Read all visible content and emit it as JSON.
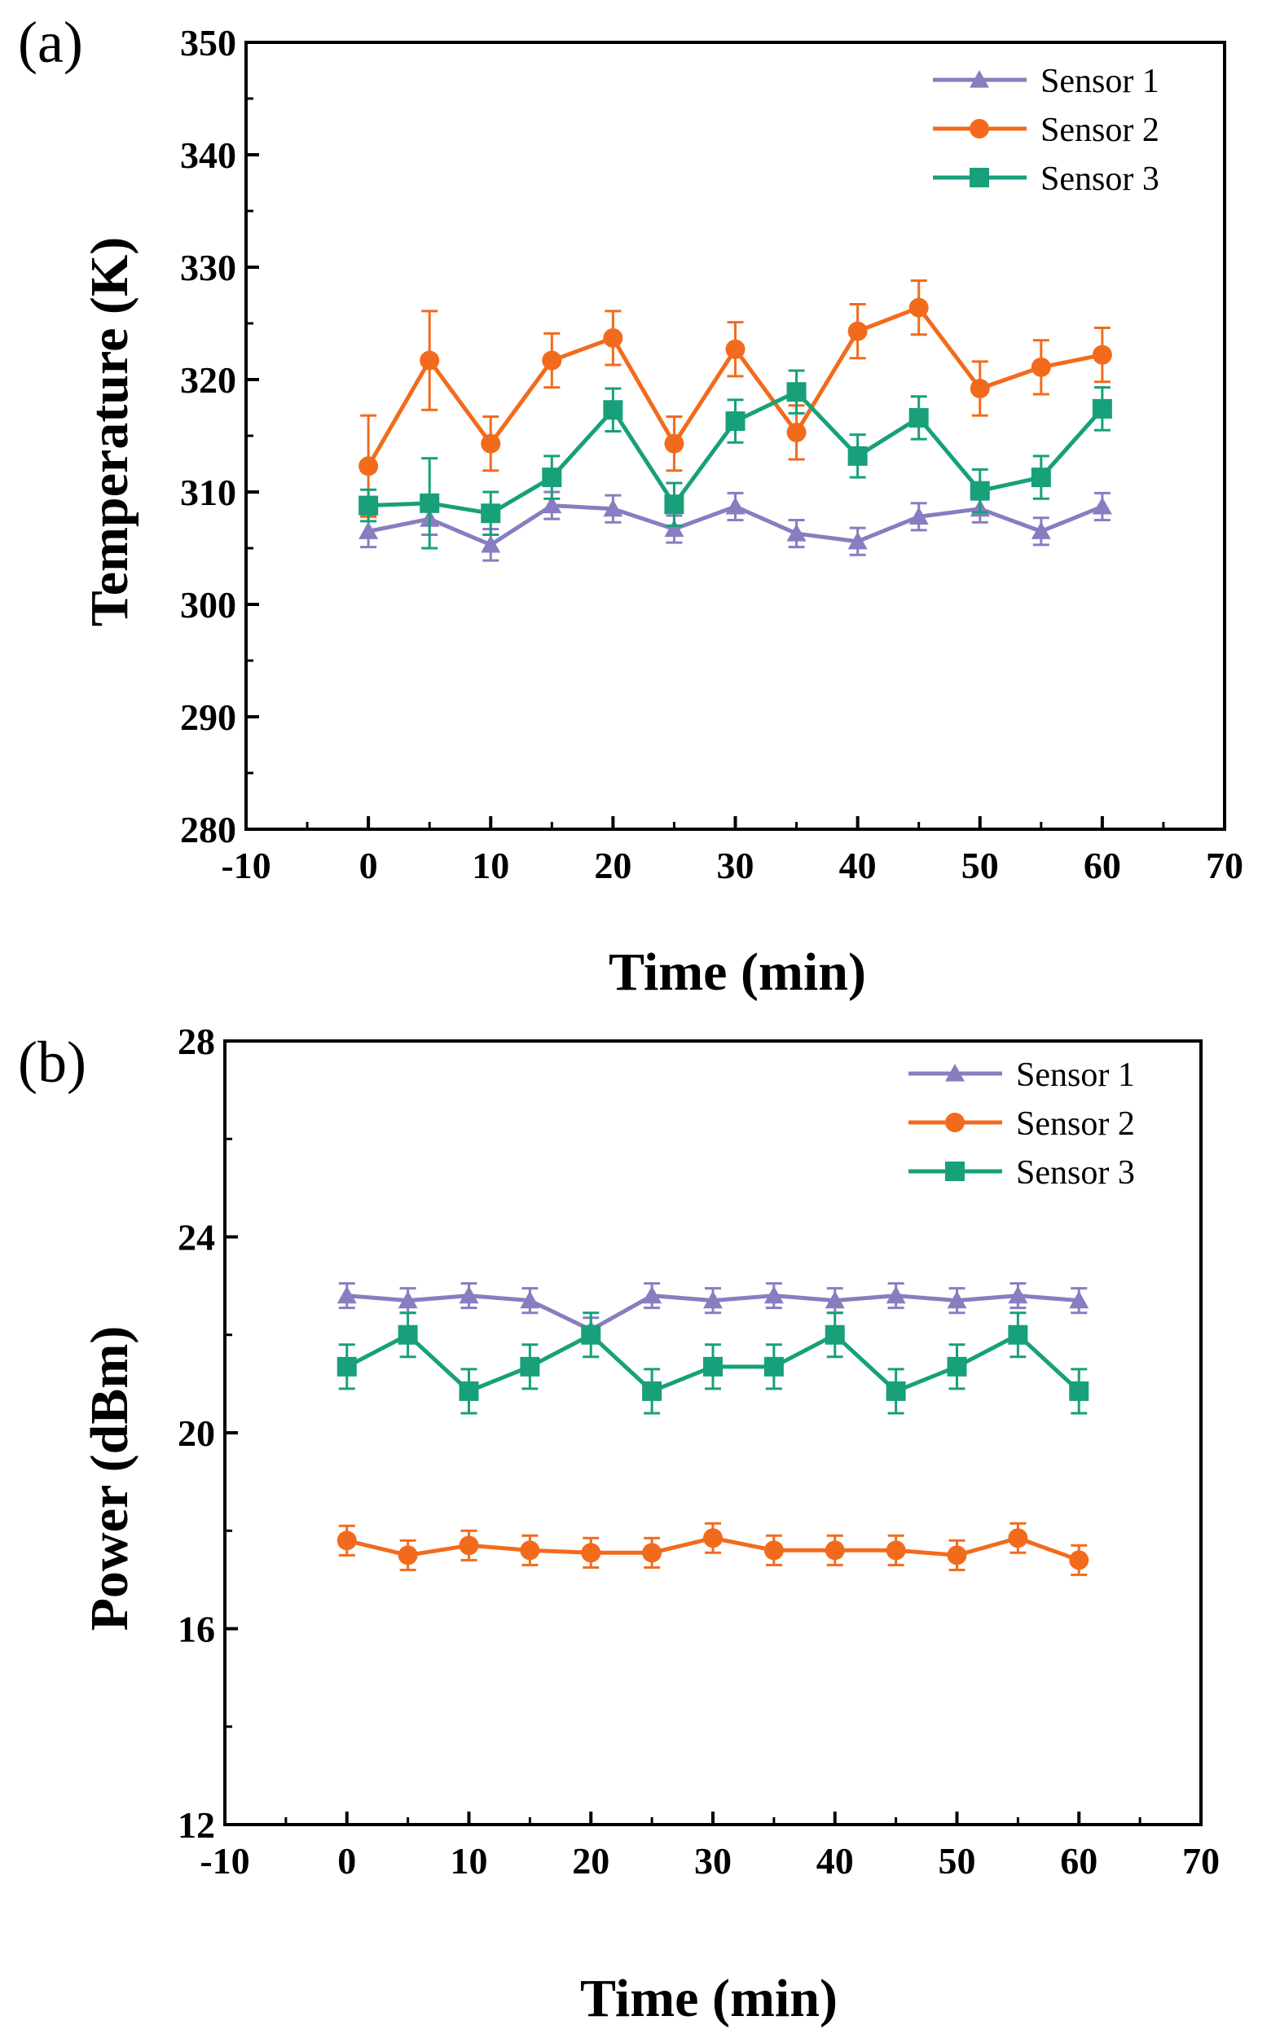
{
  "colors": {
    "sensor1": "#8A7CC0",
    "sensor2": "#F26B1D",
    "sensor3": "#17A07A",
    "axis": "#000000"
  },
  "chart_data": [
    {
      "type": "line",
      "panel_label": "(a)",
      "xlabel": "Time (min)",
      "ylabel": "Temperature (K)",
      "xlim": [
        -10,
        70
      ],
      "ylim": [
        280,
        350
      ],
      "xticks": [
        -10,
        0,
        10,
        20,
        30,
        40,
        50,
        60,
        70
      ],
      "yticks": [
        280,
        290,
        300,
        310,
        320,
        330,
        340,
        350
      ],
      "legend_position": "top-right",
      "x": [
        0,
        5,
        10,
        15,
        20,
        25,
        30,
        35,
        40,
        45,
        50,
        55,
        60
      ],
      "series": [
        {
          "name": "Sensor 1",
          "marker": "triangle",
          "color": "#8A7CC0",
          "values": [
            306.5,
            307.6,
            305.3,
            308.8,
            308.5,
            306.7,
            308.7,
            306.3,
            305.6,
            307.8,
            308.5,
            306.5,
            308.7
          ],
          "errors": [
            1.4,
            1.4,
            1.4,
            1.2,
            1.2,
            1.2,
            1.2,
            1.2,
            1.2,
            1.2,
            1.2,
            1.2,
            1.2
          ]
        },
        {
          "name": "Sensor 2",
          "marker": "circle",
          "color": "#F26B1D",
          "values": [
            312.3,
            321.7,
            314.3,
            321.7,
            323.7,
            314.3,
            322.7,
            315.3,
            324.3,
            326.4,
            319.2,
            321.1,
            322.2
          ],
          "errors": [
            4.5,
            4.4,
            2.4,
            2.4,
            2.4,
            2.4,
            2.4,
            2.4,
            2.4,
            2.4,
            2.4,
            2.4,
            2.4
          ]
        },
        {
          "name": "Sensor 3",
          "marker": "square",
          "color": "#17A07A",
          "values": [
            308.8,
            309.0,
            308.1,
            311.3,
            317.3,
            308.9,
            316.3,
            318.9,
            313.2,
            316.6,
            310.1,
            311.3,
            317.4
          ],
          "errors": [
            1.4,
            4.0,
            1.9,
            1.9,
            1.9,
            1.9,
            1.9,
            1.9,
            1.9,
            1.9,
            1.9,
            1.9,
            1.9
          ]
        }
      ]
    },
    {
      "type": "line",
      "panel_label": "(b)",
      "xlabel": "Time (min)",
      "ylabel": "Power (dBm)",
      "xlim": [
        -10,
        70
      ],
      "ylim": [
        12,
        28
      ],
      "xticks": [
        -10,
        0,
        10,
        20,
        30,
        40,
        50,
        60,
        70
      ],
      "yticks": [
        12,
        16,
        20,
        24,
        28
      ],
      "legend_position": "top-right",
      "x": [
        0,
        5,
        10,
        15,
        20,
        25,
        30,
        35,
        40,
        45,
        50,
        55,
        60
      ],
      "series": [
        {
          "name": "Sensor 1",
          "marker": "triangle",
          "color": "#8A7CC0",
          "values": [
            22.8,
            22.7,
            22.8,
            22.7,
            22.1,
            22.8,
            22.7,
            22.8,
            22.7,
            22.8,
            22.7,
            22.8,
            22.7
          ],
          "errors": [
            0.25,
            0.25,
            0.25,
            0.25,
            0.25,
            0.25,
            0.25,
            0.25,
            0.25,
            0.25,
            0.25,
            0.25,
            0.25
          ]
        },
        {
          "name": "Sensor 2",
          "marker": "circle",
          "color": "#F26B1D",
          "values": [
            17.8,
            17.5,
            17.7,
            17.6,
            17.55,
            17.55,
            17.85,
            17.6,
            17.6,
            17.6,
            17.5,
            17.85,
            17.4
          ],
          "errors": [
            0.3,
            0.3,
            0.3,
            0.3,
            0.3,
            0.3,
            0.3,
            0.3,
            0.3,
            0.3,
            0.3,
            0.3,
            0.3
          ]
        },
        {
          "name": "Sensor 3",
          "marker": "square",
          "color": "#17A07A",
          "values": [
            21.35,
            22.0,
            20.85,
            21.35,
            22.0,
            20.85,
            21.35,
            21.35,
            22.0,
            20.85,
            21.35,
            22.0,
            20.85
          ],
          "errors": [
            0.45,
            0.45,
            0.45,
            0.45,
            0.45,
            0.45,
            0.45,
            0.45,
            0.45,
            0.45,
            0.45,
            0.45,
            0.45
          ]
        }
      ]
    }
  ]
}
